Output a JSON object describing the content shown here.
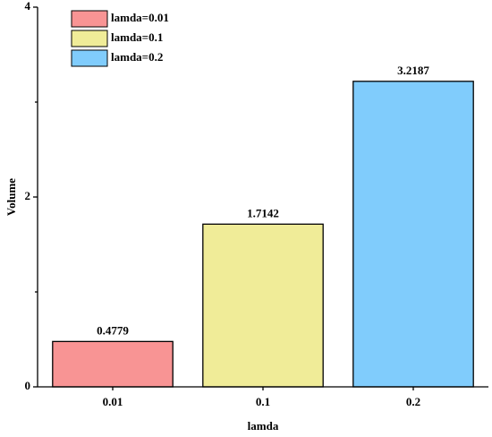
{
  "chart_data": {
    "type": "bar",
    "x_label": "lamda",
    "y_label": "Volume",
    "categories": [
      "0.01",
      "0.1",
      "0.2"
    ],
    "series": [
      {
        "name": "lamda=0.01",
        "color": "#f89494",
        "values": [
          0.4779,
          null,
          null
        ]
      },
      {
        "name": "lamda=0.1",
        "color": "#f0ec98",
        "values": [
          null,
          1.7142,
          null
        ]
      },
      {
        "name": "lamda=0.2",
        "color": "#80ccfc",
        "values": [
          null,
          null,
          3.2187
        ]
      }
    ],
    "ylim": [
      0,
      4
    ],
    "yticks": [
      0,
      2,
      4
    ],
    "yminorticks": [
      1,
      3
    ],
    "legend": "upper left"
  }
}
